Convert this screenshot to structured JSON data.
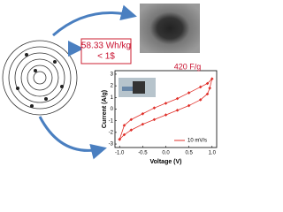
{
  "callout": {
    "lines": [
      "58.33 Wh/kg",
      "< 1$"
    ]
  },
  "chart_data": {
    "type": "line",
    "annotation": "420 F/g",
    "x_label": "Voltage (V)",
    "y_label": "Current (A/g)",
    "x": [
      -1,
      -0.9,
      -0.75,
      -0.5,
      -0.25,
      0,
      0.25,
      0.5,
      0.75,
      0.9,
      1,
      0.95,
      0.9,
      0.75,
      0.5,
      0.25,
      0,
      -0.25,
      -0.5,
      -0.75,
      -0.9,
      -1
    ],
    "series": [
      {
        "name": "10 mV/s",
        "color": "#e0302a",
        "values": [
          -2.6,
          -1.4,
          -0.9,
          -0.4,
          0.1,
          0.5,
          0.9,
          1.4,
          1.9,
          2.2,
          2.6,
          1.8,
          1.3,
          0.8,
          0.3,
          -0.1,
          -0.5,
          -0.9,
          -1.3,
          -1.8,
          -2.2,
          -2.6
        ]
      }
    ],
    "xlim": [
      -1.1,
      1.1
    ],
    "ylim": [
      -3.3,
      3.3
    ],
    "xticks": [
      {
        "value": -1,
        "label": "-1.0"
      },
      {
        "value": -0.5,
        "label": "-0.5"
      },
      {
        "value": 0,
        "label": "0.0"
      },
      {
        "value": 0.5,
        "label": "0.5"
      },
      {
        "value": 1,
        "label": "1.0"
      }
    ],
    "yticks": [
      -3,
      -2,
      -1,
      0,
      1,
      2,
      3
    ],
    "legend": "lower-right"
  }
}
